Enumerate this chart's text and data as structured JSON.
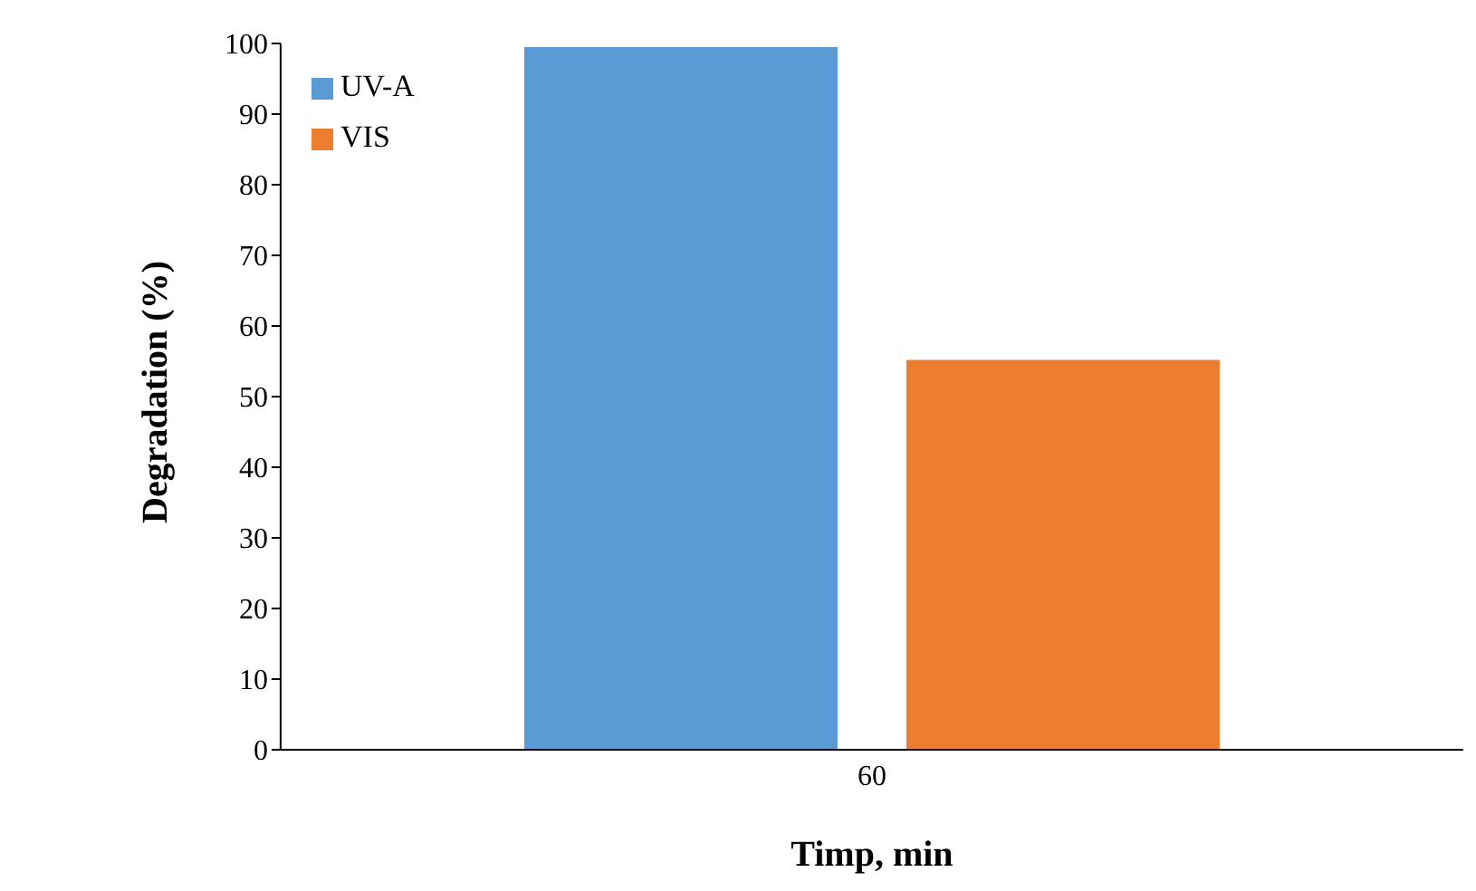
{
  "chart_data": {
    "type": "bar",
    "categories": [
      "60"
    ],
    "series": [
      {
        "name": "UV-A",
        "color": "#5b9bd5",
        "values": [
          99.5
        ]
      },
      {
        "name": "VIS",
        "color": "#ed7d31",
        "values": [
          55.2
        ]
      }
    ],
    "xlabel": "Timp,  min",
    "ylabel": "Degradation (%)",
    "ylim": [
      0,
      100
    ],
    "yticks": [
      0,
      10,
      20,
      30,
      40,
      50,
      60,
      70,
      80,
      90,
      100
    ],
    "grid": false,
    "legend": "top left"
  }
}
